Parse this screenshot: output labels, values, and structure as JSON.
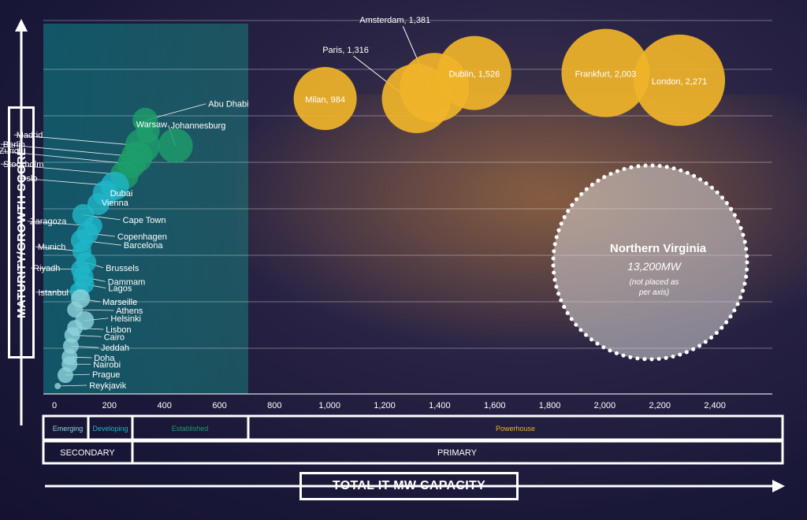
{
  "y_axis_title": "MATURITY/GROWTH SCORE",
  "x_axis_title": "TOTAL IT MW CAPACITY",
  "tiers_row1": [
    "Emerging",
    "Developing",
    "Established",
    "Powerhouse"
  ],
  "tiers_row2": [
    "SECONDARY",
    "PRIMARY"
  ],
  "callout": {
    "name": "Northern Virginia",
    "value": "13,200MW",
    "note_line1": "(not placed as",
    "note_line2": "per axis)"
  },
  "colors": {
    "powerhouse": "#f0b429",
    "established": "#1e9e6a",
    "developing": "#1fb6c8",
    "emerging": "#8fd3dc",
    "callout": "#d9d6d6"
  },
  "chart_data": {
    "type": "scatter",
    "xlabel": "TOTAL IT MW CAPACITY",
    "ylabel": "MATURITY/GROWTH SCORE",
    "xlim": [
      0,
      2500
    ],
    "ylim": [
      0,
      100
    ],
    "x_ticks": [
      "0",
      "200",
      "400",
      "600",
      "800",
      "1,000",
      "1,200",
      "1,400",
      "1,600",
      "1,800",
      "2,000",
      "2,200",
      "2,400"
    ],
    "x_tick_values": [
      0,
      200,
      400,
      600,
      800,
      1000,
      1200,
      1400,
      1600,
      1800,
      2000,
      2200,
      2400
    ],
    "gridlines": true,
    "points": [
      {
        "name": "London",
        "label": "London, 2,271",
        "x": 2271,
        "y": 84,
        "tier": "Powerhouse"
      },
      {
        "name": "Frankfurt",
        "label": "Frankfurt, 2,003",
        "x": 2003,
        "y": 86,
        "tier": "Powerhouse"
      },
      {
        "name": "Dublin",
        "label": "Dublin, 1,526",
        "x": 1526,
        "y": 86,
        "tier": "Powerhouse"
      },
      {
        "name": "Amsterdam",
        "label": "Amsterdam, 1,381",
        "x": 1381,
        "y": 82,
        "tier": "Powerhouse"
      },
      {
        "name": "Paris",
        "label": "Paris, 1,316",
        "x": 1316,
        "y": 79,
        "tier": "Powerhouse"
      },
      {
        "name": "Milan",
        "label": "Milan, 984",
        "x": 984,
        "y": 79,
        "tier": "Powerhouse"
      },
      {
        "name": "Abu Dhabi",
        "label": "Abu Dhabi",
        "x": 330,
        "y": 73,
        "tier": "Established"
      },
      {
        "name": "Warsaw",
        "label": "Warsaw",
        "x": 340,
        "y": 70,
        "tier": "Established"
      },
      {
        "name": "Johannesburg",
        "label": "Johannesburg",
        "x": 440,
        "y": 66,
        "tier": "Established"
      },
      {
        "name": "Madrid",
        "label": "Madrid",
        "x": 320,
        "y": 66,
        "tier": "Established"
      },
      {
        "name": "Berlin",
        "label": "Berlin",
        "x": 300,
        "y": 63,
        "tier": "Established"
      },
      {
        "name": "Zurich",
        "label": "Zurich",
        "x": 280,
        "y": 61,
        "tier": "Established"
      },
      {
        "name": "Stockholm",
        "label": "Stockholm",
        "x": 255,
        "y": 58,
        "tier": "Established"
      },
      {
        "name": "Oslo",
        "label": "Oslo",
        "x": 220,
        "y": 55,
        "tier": "Developing"
      },
      {
        "name": "Dubai",
        "label": "Dubai",
        "x": 185,
        "y": 53,
        "tier": "Developing"
      },
      {
        "name": "Vienna",
        "label": "Vienna",
        "x": 160,
        "y": 50,
        "tier": "Developing"
      },
      {
        "name": "Cape Town",
        "label": "Cape Town",
        "x": 105,
        "y": 47,
        "tier": "Developing"
      },
      {
        "name": "Zaragoza",
        "label": "Zaragoza",
        "x": 140,
        "y": 44,
        "tier": "Developing"
      },
      {
        "name": "Copenhagen",
        "label": "Copenhagen",
        "x": 120,
        "y": 42,
        "tier": "Developing"
      },
      {
        "name": "Barcelona",
        "label": "Barcelona",
        "x": 100,
        "y": 40,
        "tier": "Developing"
      },
      {
        "name": "Munich",
        "label": "Munich",
        "x": 100,
        "y": 37,
        "tier": "Developing"
      },
      {
        "name": "Brussels",
        "label": "Brussels",
        "x": 115,
        "y": 34,
        "tier": "Developing"
      },
      {
        "name": "Riyadh",
        "label": "Riyadh",
        "x": 95,
        "y": 32,
        "tier": "Developing"
      },
      {
        "name": "Dammam",
        "label": "Dammam",
        "x": 105,
        "y": 30,
        "tier": "Developing"
      },
      {
        "name": "Lagos",
        "label": "Lagos",
        "x": 110,
        "y": 28,
        "tier": "Developing"
      },
      {
        "name": "Istanbul",
        "label": "Istanbul",
        "x": 90,
        "y": 26,
        "tier": "Developing"
      },
      {
        "name": "Marseille",
        "label": "Marseille",
        "x": 95,
        "y": 24,
        "tier": "Emerging"
      },
      {
        "name": "Athens",
        "label": "Athens",
        "x": 75,
        "y": 21,
        "tier": "Emerging"
      },
      {
        "name": "Helsinki",
        "label": "Helsinki",
        "x": 110,
        "y": 18,
        "tier": "Emerging"
      },
      {
        "name": "Lisbon",
        "label": "Lisbon",
        "x": 75,
        "y": 16,
        "tier": "Emerging"
      },
      {
        "name": "Cairo",
        "label": "Cairo",
        "x": 65,
        "y": 14,
        "tier": "Emerging"
      },
      {
        "name": "Jeddah",
        "label": "Jeddah",
        "x": 60,
        "y": 11,
        "tier": "Emerging"
      },
      {
        "name": "Doha",
        "label": "Doha",
        "x": 55,
        "y": 8,
        "tier": "Emerging"
      },
      {
        "name": "Nairobi",
        "label": "Nairobi",
        "x": 55,
        "y": 6,
        "tier": "Emerging"
      },
      {
        "name": "Prague",
        "label": "Prague",
        "x": 40,
        "y": 3,
        "tier": "Emerging"
      },
      {
        "name": "Reykjavik",
        "label": "Reykjavik",
        "x": 12,
        "y": 0,
        "tier": "Emerging"
      }
    ]
  }
}
